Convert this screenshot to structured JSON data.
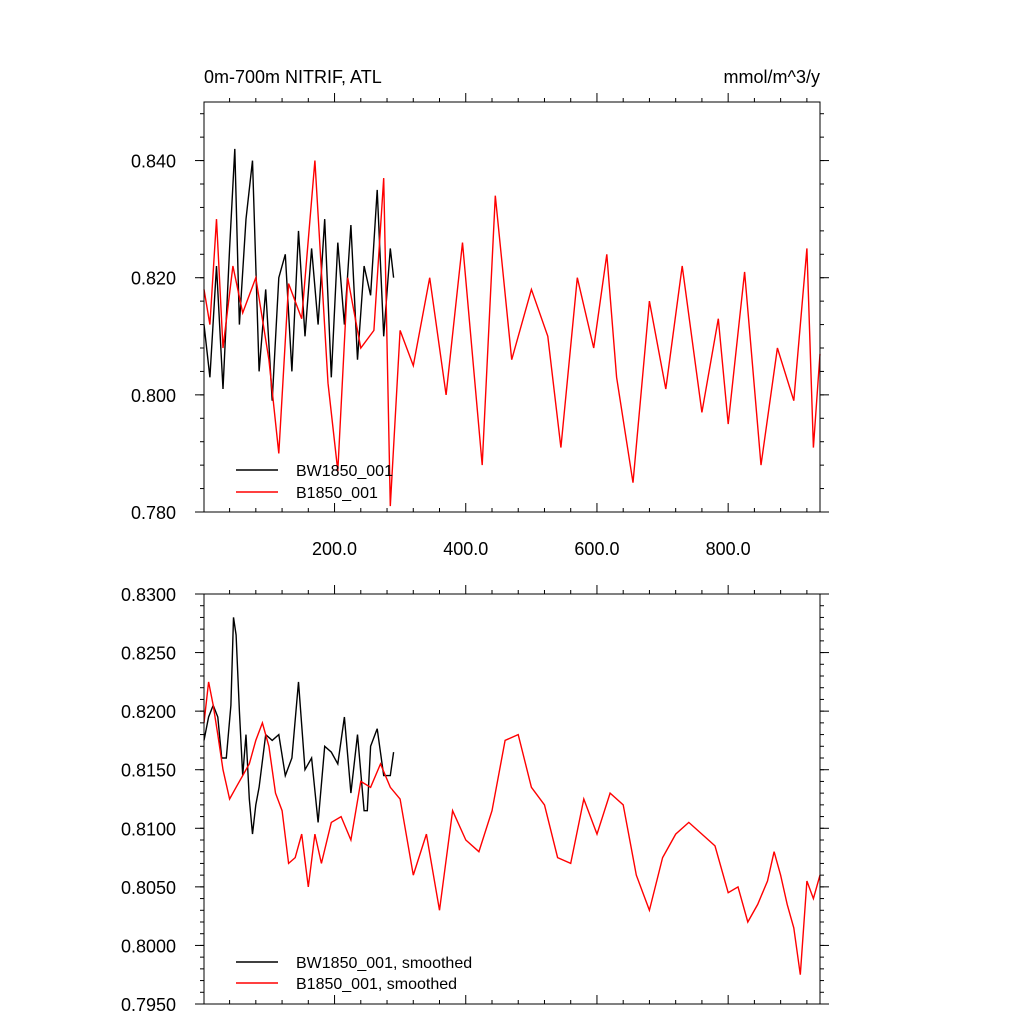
{
  "chart_data": [
    {
      "type": "line",
      "title": "0m-700m NITRIF, ATL",
      "units": "mmol/m^3/y",
      "xlim": [
        1,
        940
      ],
      "ylim": [
        0.78,
        0.85
      ],
      "x_ticks": [
        200.0,
        400.0,
        600.0,
        800.0
      ],
      "x_tick_labels": [
        "200.0",
        "400.0",
        "600.0",
        "800.0"
      ],
      "y_ticks": [
        0.78,
        0.8,
        0.82,
        0.84
      ],
      "y_tick_labels": [
        "0.780",
        "0.800",
        "0.820",
        "0.840"
      ],
      "legend_position": "bottom-left",
      "series": [
        {
          "name": "BW1850_001",
          "color": "#000000",
          "x": [
            1,
            10,
            20,
            30,
            40,
            48,
            55,
            65,
            75,
            85,
            95,
            105,
            115,
            125,
            135,
            145,
            155,
            165,
            175,
            185,
            195,
            205,
            215,
            225,
            235,
            245,
            255,
            265,
            275,
            285,
            290
          ],
          "values": [
            0.812,
            0.803,
            0.822,
            0.801,
            0.825,
            0.842,
            0.812,
            0.83,
            0.84,
            0.804,
            0.818,
            0.799,
            0.82,
            0.824,
            0.804,
            0.828,
            0.81,
            0.825,
            0.812,
            0.83,
            0.803,
            0.826,
            0.812,
            0.829,
            0.806,
            0.822,
            0.817,
            0.835,
            0.81,
            0.825,
            0.82
          ]
        },
        {
          "name": "B1850_001",
          "color": "#ff0000",
          "x": [
            1,
            10,
            20,
            30,
            45,
            60,
            80,
            100,
            115,
            130,
            150,
            170,
            190,
            205,
            220,
            240,
            260,
            275,
            285,
            300,
            320,
            345,
            370,
            395,
            425,
            445,
            470,
            500,
            525,
            545,
            570,
            595,
            615,
            630,
            655,
            680,
            705,
            730,
            760,
            785,
            800,
            825,
            850,
            875,
            900,
            920,
            930,
            940
          ],
          "values": [
            0.818,
            0.812,
            0.83,
            0.808,
            0.822,
            0.814,
            0.82,
            0.806,
            0.79,
            0.819,
            0.813,
            0.84,
            0.802,
            0.787,
            0.82,
            0.808,
            0.811,
            0.837,
            0.781,
            0.811,
            0.805,
            0.82,
            0.8,
            0.826,
            0.788,
            0.834,
            0.806,
            0.818,
            0.81,
            0.791,
            0.82,
            0.808,
            0.824,
            0.803,
            0.785,
            0.816,
            0.801,
            0.822,
            0.797,
            0.813,
            0.795,
            0.821,
            0.788,
            0.808,
            0.799,
            0.825,
            0.791,
            0.807
          ]
        }
      ]
    },
    {
      "type": "line",
      "xlim": [
        1,
        940
      ],
      "ylim": [
        0.795,
        0.83
      ],
      "x_ticks": [
        200.0,
        400.0,
        600.0,
        800.0
      ],
      "y_ticks": [
        0.795,
        0.8,
        0.805,
        0.81,
        0.815,
        0.82,
        0.825,
        0.83
      ],
      "y_tick_labels": [
        "0.7950",
        "0.8000",
        "0.8050",
        "0.8100",
        "0.8150",
        "0.8200",
        "0.8250",
        "0.8300"
      ],
      "legend_position": "bottom-left",
      "series": [
        {
          "name": "BW1850_001, smoothed",
          "color": "#000000",
          "x": [
            1,
            8,
            15,
            22,
            28,
            35,
            42,
            46,
            50,
            55,
            60,
            65,
            70,
            75,
            80,
            85,
            95,
            105,
            115,
            125,
            135,
            145,
            155,
            165,
            175,
            185,
            195,
            205,
            215,
            225,
            235,
            245,
            250,
            255,
            265,
            275,
            285,
            290
          ],
          "values": [
            0.8175,
            0.8195,
            0.8205,
            0.8195,
            0.816,
            0.816,
            0.8205,
            0.828,
            0.8265,
            0.82,
            0.8145,
            0.818,
            0.8125,
            0.8095,
            0.812,
            0.8135,
            0.818,
            0.8175,
            0.818,
            0.8145,
            0.816,
            0.8225,
            0.815,
            0.816,
            0.8105,
            0.817,
            0.8165,
            0.8155,
            0.8195,
            0.813,
            0.818,
            0.8115,
            0.8115,
            0.817,
            0.8185,
            0.8145,
            0.8145,
            0.8165
          ]
        },
        {
          "name": "B1850_001, smoothed",
          "color": "#ff0000",
          "x": [
            1,
            8,
            15,
            22,
            30,
            40,
            50,
            60,
            70,
            80,
            90,
            100,
            110,
            120,
            130,
            140,
            150,
            160,
            170,
            180,
            195,
            210,
            225,
            240,
            255,
            270,
            285,
            300,
            320,
            340,
            360,
            380,
            400,
            420,
            440,
            460,
            480,
            500,
            520,
            540,
            560,
            580,
            600,
            620,
            640,
            660,
            680,
            700,
            720,
            740,
            760,
            780,
            800,
            815,
            830,
            845,
            860,
            870,
            880,
            890,
            900,
            910,
            920,
            930,
            940
          ],
          "values": [
            0.819,
            0.8225,
            0.8205,
            0.818,
            0.815,
            0.8125,
            0.8135,
            0.8145,
            0.8155,
            0.8175,
            0.819,
            0.817,
            0.813,
            0.8115,
            0.807,
            0.8075,
            0.8095,
            0.805,
            0.8095,
            0.807,
            0.8105,
            0.811,
            0.809,
            0.814,
            0.8135,
            0.8155,
            0.8135,
            0.8125,
            0.806,
            0.8095,
            0.803,
            0.8115,
            0.809,
            0.808,
            0.8115,
            0.8175,
            0.818,
            0.8135,
            0.812,
            0.8075,
            0.807,
            0.8125,
            0.8095,
            0.813,
            0.812,
            0.806,
            0.803,
            0.8075,
            0.8095,
            0.8105,
            0.8095,
            0.8085,
            0.8045,
            0.805,
            0.802,
            0.8035,
            0.8055,
            0.808,
            0.806,
            0.8035,
            0.8015,
            0.7975,
            0.8055,
            0.804,
            0.806
          ]
        }
      ]
    }
  ]
}
